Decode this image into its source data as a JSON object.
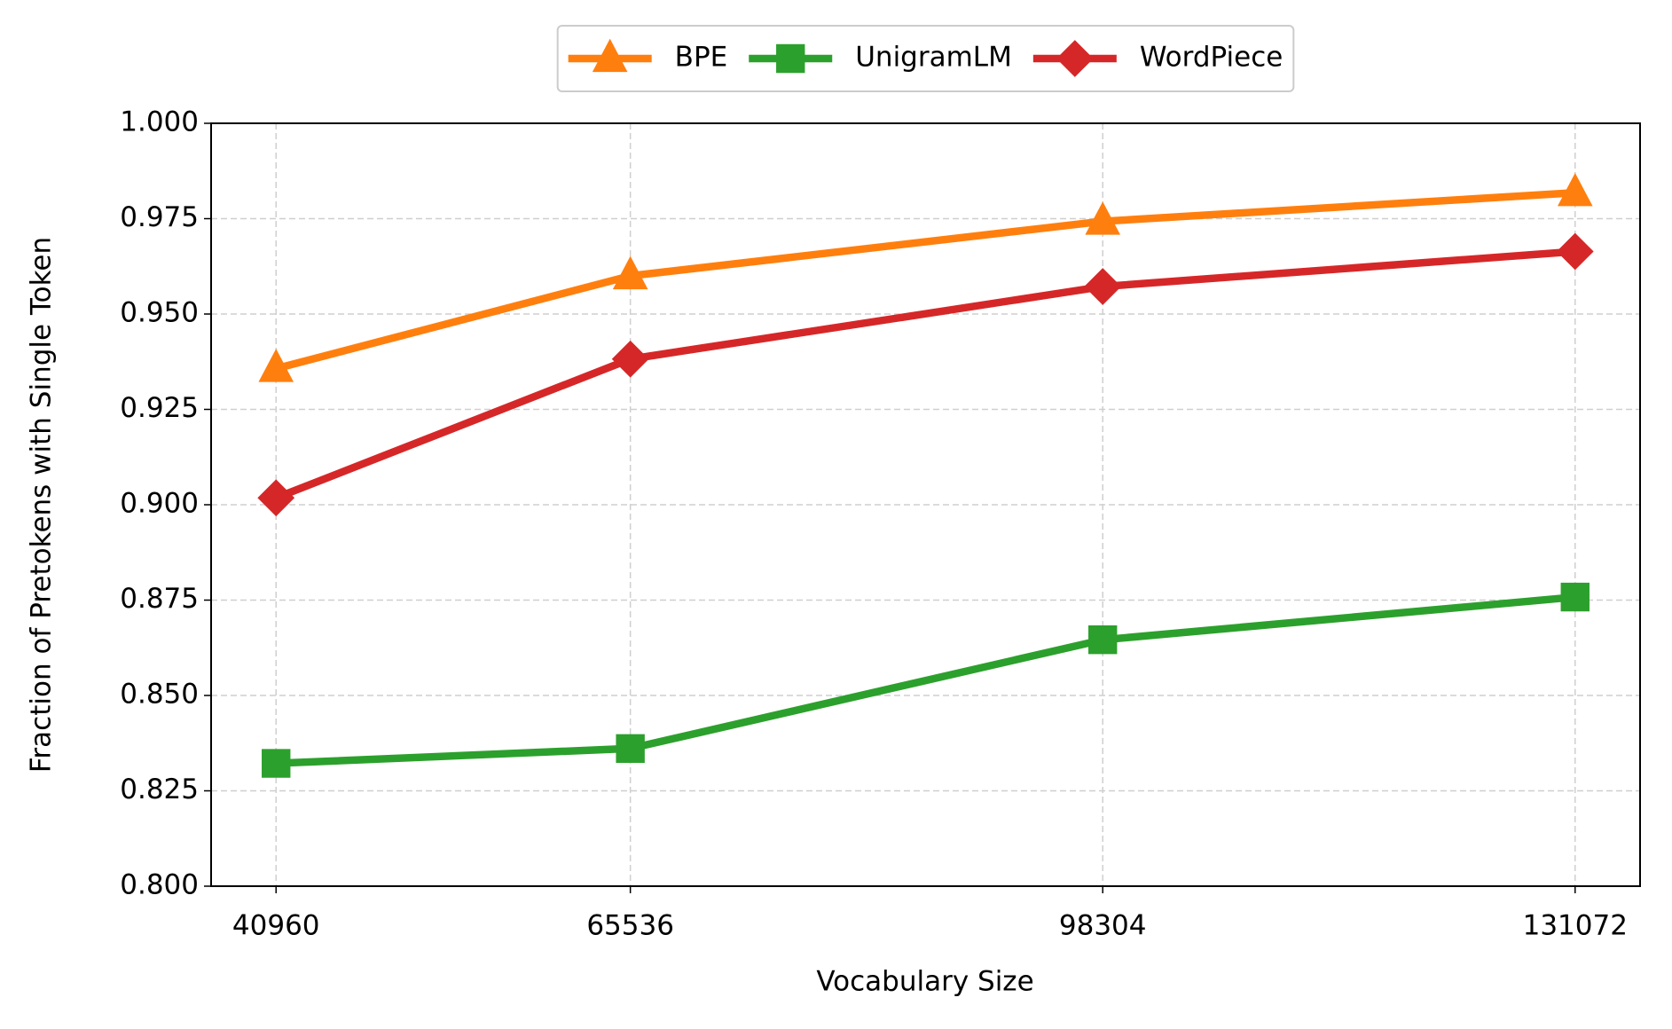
{
  "chart_data": {
    "type": "line",
    "x_label": "Vocabulary Size",
    "y_label": "Fraction of Pretokens with Single Token",
    "x": [
      40960,
      65536,
      98304,
      131072
    ],
    "series": [
      {
        "name": "BPE",
        "color": "#ff7f0e",
        "marker": "triangle",
        "values": [
          0.9357,
          0.96,
          0.9743,
          0.9818
        ]
      },
      {
        "name": "UnigramLM",
        "color": "#2ca02c",
        "marker": "square",
        "values": [
          0.8322,
          0.8361,
          0.8646,
          0.8758
        ]
      },
      {
        "name": "WordPiece",
        "color": "#d62728",
        "marker": "diamond",
        "values": [
          0.9018,
          0.9382,
          0.9572,
          0.9664
        ]
      }
    ],
    "xlim": [
      36454.4,
      135577.6
    ],
    "xticks": [
      40960,
      65536,
      98304,
      131072
    ],
    "ylim": [
      0.8,
      1.0
    ],
    "yticks": [
      {
        "value": 0.8,
        "label": "0.800"
      },
      {
        "value": 0.825,
        "label": "0.825"
      },
      {
        "value": 0.85,
        "label": "0.850"
      },
      {
        "value": 0.875,
        "label": "0.875"
      },
      {
        "value": 0.9,
        "label": "0.900"
      },
      {
        "value": 0.925,
        "label": "0.925"
      },
      {
        "value": 0.95,
        "label": "0.950"
      },
      {
        "value": 0.975,
        "label": "0.975"
      },
      {
        "value": 1.0,
        "label": "1.000"
      }
    ],
    "grid": true,
    "legend_position": "top-center"
  }
}
